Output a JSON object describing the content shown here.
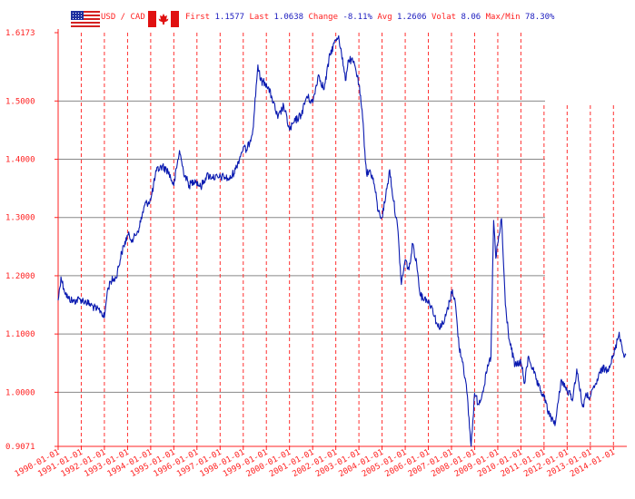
{
  "header": {
    "pair": "USD / CAD",
    "stats": [
      {
        "label": "First",
        "value": "1.1577"
      },
      {
        "label": "Last",
        "value": "1.0638"
      },
      {
        "label": "Change",
        "value": "-8.11%"
      },
      {
        "label": "Avg",
        "value": "1.2606"
      },
      {
        "label": "Volat",
        "value": "8.06"
      },
      {
        "label": "Max/Min",
        "value": "78.30%"
      }
    ],
    "flags": [
      "usa-flag-icon",
      "canada-flag-icon"
    ]
  },
  "colors": {
    "line": "#0a1ab0",
    "grid_v": "#ff3030",
    "grid_h": "#888888",
    "label": "#ff2020",
    "header_label": "#ff2020",
    "header_value": "#2020c0",
    "axis": "#ff2020"
  },
  "chart_data": {
    "type": "line",
    "title": "",
    "xlabel": "",
    "ylabel": "",
    "series": [
      {
        "points": [
          [
            "1990-01-01",
            1.1577
          ],
          [
            "1990-02-15",
            1.198
          ],
          [
            "1990-04-01",
            1.178
          ],
          [
            "1990-06-01",
            1.162
          ],
          [
            "1990-09-01",
            1.156
          ],
          [
            "1990-12-01",
            1.16
          ],
          [
            "1991-03-01",
            1.156
          ],
          [
            "1991-06-01",
            1.15
          ],
          [
            "1991-09-01",
            1.142
          ],
          [
            "1991-11-01",
            1.14
          ],
          [
            "1992-01-01",
            1.128
          ],
          [
            "1992-02-15",
            1.172
          ],
          [
            "1992-04-01",
            1.19
          ],
          [
            "1992-07-01",
            1.196
          ],
          [
            "1992-10-01",
            1.24
          ],
          [
            "1993-01-01",
            1.27
          ],
          [
            "1993-04-01",
            1.262
          ],
          [
            "1993-07-01",
            1.282
          ],
          [
            "1993-10-01",
            1.322
          ],
          [
            "1994-01-01",
            1.33
          ],
          [
            "1994-04-01",
            1.38
          ],
          [
            "1994-07-01",
            1.388
          ],
          [
            "1994-10-01",
            1.38
          ],
          [
            "1995-01-01",
            1.355
          ],
          [
            "1995-04-01",
            1.415
          ],
          [
            "1995-06-01",
            1.38
          ],
          [
            "1995-09-01",
            1.355
          ],
          [
            "1995-12-01",
            1.365
          ],
          [
            "1996-03-01",
            1.352
          ],
          [
            "1996-06-01",
            1.372
          ],
          [
            "1996-09-01",
            1.37
          ],
          [
            "1996-12-01",
            1.368
          ],
          [
            "1997-03-01",
            1.37
          ],
          [
            "1997-06-01",
            1.365
          ],
          [
            "1997-09-01",
            1.383
          ],
          [
            "1998-01-01",
            1.42
          ],
          [
            "1998-03-01",
            1.415
          ],
          [
            "1998-06-01",
            1.45
          ],
          [
            "1998-08-20",
            1.562
          ],
          [
            "1998-10-01",
            1.535
          ],
          [
            "1999-01-01",
            1.53
          ],
          [
            "1999-04-01",
            1.505
          ],
          [
            "1999-07-01",
            1.47
          ],
          [
            "1999-10-01",
            1.492
          ],
          [
            "2000-01-01",
            1.45
          ],
          [
            "2000-04-01",
            1.466
          ],
          [
            "2000-07-01",
            1.476
          ],
          [
            "2000-10-01",
            1.508
          ],
          [
            "2001-01-01",
            1.497
          ],
          [
            "2001-04-01",
            1.545
          ],
          [
            "2001-07-01",
            1.52
          ],
          [
            "2001-10-01",
            1.58
          ],
          [
            "2002-01-01",
            1.605
          ],
          [
            "2002-02-15",
            1.612
          ],
          [
            "2002-04-01",
            1.582
          ],
          [
            "2002-06-01",
            1.535
          ],
          [
            "2002-07-15",
            1.57
          ],
          [
            "2002-09-01",
            1.57
          ],
          [
            "2002-11-01",
            1.56
          ],
          [
            "2003-01-01",
            1.528
          ],
          [
            "2003-03-01",
            1.47
          ],
          [
            "2003-05-01",
            1.375
          ],
          [
            "2003-07-01",
            1.38
          ],
          [
            "2003-09-01",
            1.357
          ],
          [
            "2003-11-01",
            1.31
          ],
          [
            "2004-01-01",
            1.3
          ],
          [
            "2004-03-01",
            1.338
          ],
          [
            "2004-05-01",
            1.382
          ],
          [
            "2004-07-01",
            1.328
          ],
          [
            "2004-09-01",
            1.285
          ],
          [
            "2004-11-01",
            1.185
          ],
          [
            "2005-01-01",
            1.228
          ],
          [
            "2005-03-01",
            1.21
          ],
          [
            "2005-05-01",
            1.255
          ],
          [
            "2005-07-01",
            1.22
          ],
          [
            "2005-09-01",
            1.165
          ],
          [
            "2005-12-01",
            1.16
          ],
          [
            "2006-03-01",
            1.146
          ],
          [
            "2006-06-01",
            1.112
          ],
          [
            "2006-09-01",
            1.118
          ],
          [
            "2006-12-01",
            1.155
          ],
          [
            "2007-01-15",
            1.176
          ],
          [
            "2007-03-01",
            1.155
          ],
          [
            "2007-05-01",
            1.078
          ],
          [
            "2007-07-01",
            1.052
          ],
          [
            "2007-09-01",
            1.0
          ],
          [
            "2007-11-07",
            0.9071
          ],
          [
            "2008-01-01",
            0.998
          ],
          [
            "2008-03-01",
            0.98
          ],
          [
            "2008-05-01",
            0.998
          ],
          [
            "2008-08-01",
            1.045
          ],
          [
            "2008-09-15",
            1.06
          ],
          [
            "2008-10-28",
            1.295
          ],
          [
            "2008-12-01",
            1.23
          ],
          [
            "2009-03-01",
            1.298
          ],
          [
            "2009-05-01",
            1.15
          ],
          [
            "2009-07-01",
            1.09
          ],
          [
            "2009-10-01",
            1.045
          ],
          [
            "2010-01-01",
            1.052
          ],
          [
            "2010-03-01",
            1.015
          ],
          [
            "2010-05-01",
            1.062
          ],
          [
            "2010-07-01",
            1.042
          ],
          [
            "2010-10-01",
            1.01
          ],
          [
            "2011-01-01",
            0.992
          ],
          [
            "2011-04-01",
            0.958
          ],
          [
            "2011-07-01",
            0.948
          ],
          [
            "2011-10-01",
            1.022
          ],
          [
            "2012-01-01",
            1.002
          ],
          [
            "2012-04-01",
            0.99
          ],
          [
            "2012-06-01",
            1.04
          ],
          [
            "2012-09-01",
            0.975
          ],
          [
            "2012-11-01",
            0.995
          ],
          [
            "2013-01-01",
            0.992
          ],
          [
            "2013-04-01",
            1.015
          ],
          [
            "2013-07-01",
            1.04
          ],
          [
            "2013-10-01",
            1.04
          ],
          [
            "2014-01-01",
            1.062
          ],
          [
            "2014-04-01",
            1.103
          ],
          [
            "2014-06-01",
            1.068
          ],
          [
            "2014-07-15",
            1.0638
          ]
        ]
      }
    ],
    "x_ticks": [
      "1990-01-01",
      "1991-01-01",
      "1992-01-01",
      "1993-01-01",
      "1994-01-01",
      "1995-01-01",
      "1996-01-01",
      "1997-01-01",
      "1998-01-01",
      "1999-01-01",
      "2000-01-01",
      "2001-01-01",
      "2002-01-01",
      "2003-01-01",
      "2004-01-01",
      "2005-01-01",
      "2006-01-01",
      "2007-01-01",
      "2008-01-01",
      "2009-01-01",
      "2010-01-01",
      "2011-01-01",
      "2012-01-01",
      "2013-01-01",
      "2014-01-01"
    ],
    "y_ticks": [
      {
        "value": 0.9071,
        "label": "0.9071"
      },
      {
        "value": 1.0,
        "label": "1.0000"
      },
      {
        "value": 1.1,
        "label": "1.1000"
      },
      {
        "value": 1.2,
        "label": "1.2000"
      },
      {
        "value": 1.3,
        "label": "1.3000"
      },
      {
        "value": 1.4,
        "label": "1.4000"
      },
      {
        "value": 1.5,
        "label": "1.5000"
      },
      {
        "value": 1.6173,
        "label": "1.6173"
      }
    ],
    "xlim": [
      "1990-01-01",
      "2014-07-31"
    ],
    "ylim": [
      0.9071,
      1.6173
    ],
    "grid": true
  }
}
